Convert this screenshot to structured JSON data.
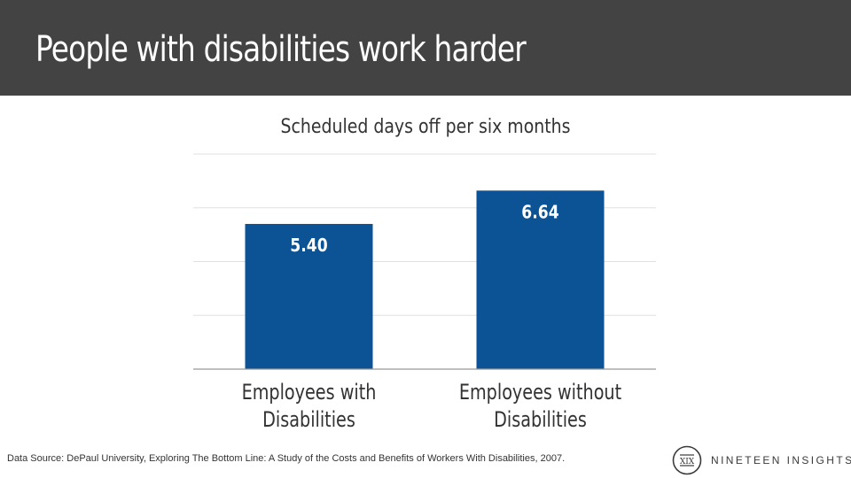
{
  "header": {
    "title": "People with disabilities work harder"
  },
  "chart_data": {
    "type": "bar",
    "title": "Scheduled days off per six months",
    "categories": [
      [
        "Employees with",
        "Disabilities"
      ],
      [
        "Employees without",
        "Disabilities"
      ]
    ],
    "values": [
      5.4,
      6.64
    ],
    "value_labels": [
      "5.40",
      "6.64"
    ],
    "ylim": [
      0,
      8
    ],
    "grid": true,
    "xlabel": "",
    "ylabel": "",
    "bar_color": "#0b5394",
    "grid_color": "#e0e0e0",
    "axis_color": "#999999"
  },
  "footer": {
    "source": "Data Source: DePaul University, Exploring The Bottom Line: A Study of the Costs and Benefits of Workers With Disabilities, 2007.",
    "logo_text": "NINETEEN INSIGHTS",
    "logo_mark": "XIX"
  },
  "colors": {
    "header_bg": "#434343",
    "header_text": "#ffffff"
  }
}
